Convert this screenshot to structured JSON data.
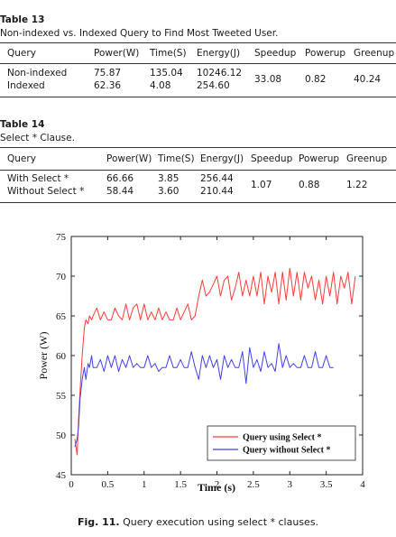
{
  "table13": {
    "number": "Table 13",
    "caption": "Non-indexed vs. Indexed Query to Find Most Tweeted User.",
    "headers": [
      "Query",
      "Power(W)",
      "Time(S)",
      "Energy(J)",
      "Speedup",
      "Powerup",
      "Greenup"
    ],
    "rows": {
      "query": [
        "Non-indexed",
        "Indexed"
      ],
      "power": [
        "75.87",
        "62.36"
      ],
      "time": [
        "135.04",
        "4.08"
      ],
      "energy": [
        "10246.12",
        "254.60"
      ]
    },
    "speedup": "33.08",
    "powerup": "0.82",
    "greenup": "40.24"
  },
  "table14": {
    "number": "Table 14",
    "caption": "Select * Clause.",
    "headers": [
      "Query",
      "Power(W)",
      "Time(S)",
      "Energy(J)",
      "Speedup",
      "Powerup",
      "Greenup"
    ],
    "rows": {
      "query": [
        "With Select *",
        "Without Select *"
      ],
      "power": [
        "66.66",
        "58.44"
      ],
      "time": [
        "3.85",
        "3.60"
      ],
      "energy": [
        "256.44",
        "210.44"
      ]
    },
    "speedup": "1.07",
    "powerup": "0.88",
    "greenup": "1.22"
  },
  "figure": {
    "label": "Fig. 11.",
    "caption": "Query execution using select * clauses."
  },
  "chart_data": {
    "type": "line",
    "title": "",
    "xlabel": "Time (s)",
    "ylabel": "Power (W)",
    "xlim": [
      0,
      4
    ],
    "ylim": [
      45,
      75
    ],
    "xticks": [
      "0",
      "0.5",
      "1",
      "1.5",
      "2",
      "2.5",
      "3",
      "3.5",
      "4"
    ],
    "yticks": [
      "45",
      "50",
      "55",
      "60",
      "65",
      "70",
      "75"
    ],
    "grid": false,
    "legend_position": "bottom-right",
    "series": [
      {
        "name": "Query using Select *",
        "color": "#ff3b3b",
        "x": [
          0.05,
          0.08,
          0.1,
          0.12,
          0.15,
          0.18,
          0.2,
          0.23,
          0.25,
          0.28,
          0.3,
          0.35,
          0.4,
          0.45,
          0.5,
          0.55,
          0.6,
          0.65,
          0.7,
          0.75,
          0.8,
          0.85,
          0.9,
          0.95,
          1.0,
          1.05,
          1.1,
          1.15,
          1.2,
          1.25,
          1.3,
          1.35,
          1.4,
          1.45,
          1.5,
          1.55,
          1.6,
          1.65,
          1.7,
          1.75,
          1.8,
          1.85,
          1.9,
          1.95,
          2.0,
          2.05,
          2.1,
          2.15,
          2.2,
          2.25,
          2.3,
          2.35,
          2.4,
          2.45,
          2.5,
          2.55,
          2.6,
          2.65,
          2.7,
          2.75,
          2.8,
          2.85,
          2.9,
          2.95,
          3.0,
          3.05,
          3.1,
          3.15,
          3.2,
          3.25,
          3.3,
          3.35,
          3.4,
          3.45,
          3.5,
          3.55,
          3.6,
          3.65,
          3.7,
          3.75,
          3.8,
          3.85,
          3.9
        ],
        "y": [
          49.5,
          47.5,
          52.0,
          55.5,
          60.0,
          63.5,
          64.5,
          64.0,
          65.0,
          64.5,
          65.0,
          66.0,
          64.5,
          65.5,
          64.5,
          64.5,
          66.0,
          65.0,
          64.5,
          66.5,
          64.5,
          66.0,
          66.5,
          64.5,
          66.5,
          64.5,
          65.5,
          64.5,
          66.0,
          64.5,
          65.5,
          64.5,
          64.5,
          66.0,
          64.5,
          65.5,
          66.5,
          64.5,
          65.0,
          67.5,
          69.5,
          67.5,
          68.0,
          69.0,
          70.0,
          67.5,
          69.5,
          70.0,
          67.0,
          68.5,
          70.5,
          67.5,
          69.5,
          67.5,
          70.0,
          67.5,
          70.5,
          66.5,
          70.0,
          68.0,
          70.5,
          66.5,
          70.5,
          67.0,
          71.0,
          67.5,
          70.5,
          67.0,
          70.5,
          68.5,
          70.0,
          67.0,
          69.5,
          66.5,
          70.0,
          67.5,
          70.5,
          66.5,
          70.0,
          68.5,
          70.5,
          66.5,
          70.0
        ]
      },
      {
        "name": "Query without Select *",
        "color": "#4040ee",
        "x": [
          0.05,
          0.08,
          0.1,
          0.12,
          0.15,
          0.18,
          0.2,
          0.23,
          0.25,
          0.28,
          0.3,
          0.35,
          0.4,
          0.45,
          0.5,
          0.55,
          0.6,
          0.65,
          0.7,
          0.75,
          0.8,
          0.85,
          0.9,
          0.95,
          1.0,
          1.05,
          1.1,
          1.15,
          1.2,
          1.25,
          1.3,
          1.35,
          1.4,
          1.45,
          1.5,
          1.55,
          1.6,
          1.65,
          1.7,
          1.75,
          1.8,
          1.85,
          1.9,
          1.95,
          2.0,
          2.05,
          2.1,
          2.15,
          2.2,
          2.25,
          2.3,
          2.35,
          2.4,
          2.45,
          2.5,
          2.55,
          2.6,
          2.65,
          2.7,
          2.75,
          2.8,
          2.85,
          2.9,
          2.95,
          3.0,
          3.05,
          3.1,
          3.15,
          3.2,
          3.25,
          3.3,
          3.35,
          3.4,
          3.45,
          3.5,
          3.55,
          3.6
        ],
        "y": [
          48.5,
          49.5,
          51.0,
          54.5,
          57.0,
          58.5,
          57.0,
          59.0,
          58.5,
          60.0,
          58.5,
          58.5,
          59.5,
          58.0,
          60.0,
          58.5,
          60.0,
          58.0,
          59.5,
          58.5,
          60.0,
          58.5,
          59.0,
          58.5,
          58.5,
          60.0,
          58.5,
          59.0,
          58.0,
          58.5,
          58.5,
          60.0,
          58.5,
          58.5,
          59.5,
          58.5,
          58.5,
          60.5,
          58.5,
          57.0,
          60.0,
          58.5,
          60.0,
          58.5,
          59.5,
          57.0,
          60.0,
          58.5,
          59.5,
          58.5,
          58.5,
          60.5,
          56.5,
          61.0,
          58.5,
          59.5,
          58.0,
          60.5,
          58.5,
          59.0,
          58.0,
          61.5,
          58.5,
          60.0,
          58.5,
          59.0,
          58.5,
          58.5,
          60.0,
          58.5,
          58.5,
          60.5,
          58.5,
          58.5,
          60.0,
          58.5,
          58.5
        ]
      }
    ]
  }
}
